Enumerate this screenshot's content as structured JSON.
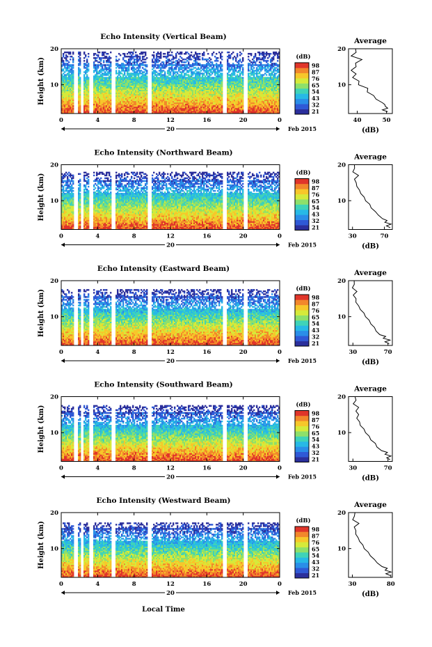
{
  "figure": {
    "xlabel": "Local Time",
    "date_label": "20",
    "month_label": "Feb 2015",
    "colorbar_unit": "(dB)",
    "average_title": "Average",
    "average_xlabel": "(dB)",
    "ylabel": "Height (km)"
  },
  "colors": {
    "colormap": [
      "#2b2f9c",
      "#2f59d6",
      "#2a8ee8",
      "#27b9e6",
      "#3fd3b8",
      "#8ee06a",
      "#d6ea3a",
      "#f7c72a",
      "#f2872b",
      "#e0352a"
    ]
  },
  "chart_data": [
    {
      "type": "heatmap",
      "title": "Echo Intensity (Vertical Beam)",
      "x_range": [
        0,
        24
      ],
      "x_ticks": [
        "0",
        "4",
        "8",
        "12",
        "16",
        "20",
        "0"
      ],
      "y_range": [
        2,
        20
      ],
      "y_ticks": [
        "10",
        "20"
      ],
      "colorbar_ticks": [
        "98",
        "87",
        "76",
        "65",
        "54",
        "43",
        "32",
        "21"
      ],
      "gaps_hours": [
        1.6,
        2.3,
        3.3,
        5.7,
        9.7,
        17.9,
        20.3
      ],
      "average_profile": {
        "x_range": [
          37,
          52
        ],
        "x_ticks": [
          "40",
          "50"
        ],
        "y_ticks": [
          "10",
          "20"
        ],
        "height_km": [
          2.5,
          3,
          3.5,
          4,
          4.5,
          5,
          6,
          7,
          8,
          9,
          10,
          11,
          12,
          13,
          14,
          15,
          16,
          17,
          18,
          19,
          20
        ],
        "value_db": [
          51,
          48,
          51,
          49,
          50,
          48,
          47,
          45,
          44,
          43,
          41,
          40,
          39,
          39,
          38.5,
          39,
          40,
          41,
          38.5,
          39,
          40
        ]
      }
    },
    {
      "type": "heatmap",
      "title": "Echo Intensity (Northward Beam)",
      "x_range": [
        0,
        24
      ],
      "x_ticks": [
        "0",
        "4",
        "8",
        "12",
        "16",
        "20",
        "0"
      ],
      "y_range": [
        2,
        20
      ],
      "y_ticks": [
        "10",
        "20"
      ],
      "colorbar_ticks": [
        "98",
        "87",
        "76",
        "65",
        "54",
        "43",
        "32",
        "21"
      ],
      "gaps_hours": [
        1.6,
        2.3,
        3.3,
        5.7,
        9.7,
        17.9,
        20.3
      ],
      "average_profile": {
        "x_range": [
          25,
          80
        ],
        "x_ticks": [
          "30",
          "70"
        ],
        "y_ticks": [
          "10",
          "20"
        ],
        "height_km": [
          2.5,
          3,
          3.5,
          4,
          4.5,
          5,
          6,
          7,
          8,
          9,
          10,
          11,
          12,
          13,
          14,
          15,
          16,
          17,
          18,
          19,
          20
        ],
        "value_db": [
          78,
          72,
          79,
          70,
          74,
          67,
          63,
          58,
          54,
          51,
          47,
          44,
          41,
          38,
          36,
          34,
          33,
          37,
          31,
          32,
          33
        ]
      }
    },
    {
      "type": "heatmap",
      "title": "Echo Intensity (Eastward Beam)",
      "x_range": [
        0,
        24
      ],
      "x_ticks": [
        "0",
        "4",
        "8",
        "12",
        "16",
        "20",
        "0"
      ],
      "y_range": [
        2,
        20
      ],
      "y_ticks": [
        "10",
        "20"
      ],
      "colorbar_ticks": [
        "98",
        "87",
        "76",
        "65",
        "54",
        "43",
        "32",
        "21"
      ],
      "gaps_hours": [
        1.6,
        2.3,
        3.3,
        5.7,
        9.7,
        17.9,
        20.3
      ],
      "average_profile": {
        "x_range": [
          25,
          75
        ],
        "x_ticks": [
          "30",
          "70"
        ],
        "y_ticks": [
          "10",
          "20"
        ],
        "height_km": [
          2.5,
          3,
          3.5,
          4,
          4.5,
          5,
          6,
          7,
          8,
          9,
          10,
          11,
          12,
          13,
          14,
          15,
          16,
          17,
          18,
          19,
          20
        ],
        "value_db": [
          72,
          66,
          73,
          64,
          68,
          60,
          57,
          54,
          51,
          48,
          45,
          42,
          39,
          36,
          34,
          33,
          31,
          34,
          30,
          31,
          32
        ]
      }
    },
    {
      "type": "heatmap",
      "title": "Echo Intensity (Southward Beam)",
      "x_range": [
        0,
        24
      ],
      "x_ticks": [
        "0",
        "4",
        "8",
        "12",
        "16",
        "20",
        "0"
      ],
      "y_range": [
        2,
        20
      ],
      "y_ticks": [
        "10",
        "20"
      ],
      "colorbar_ticks": [
        "98",
        "87",
        "76",
        "65",
        "54",
        "43",
        "32",
        "21"
      ],
      "gaps_hours": [
        1.6,
        2.3,
        3.3,
        5.7,
        9.7,
        17.9,
        20.3
      ],
      "average_profile": {
        "x_range": [
          25,
          75
        ],
        "x_ticks": [
          "30",
          "70"
        ],
        "y_ticks": [
          "10",
          "20"
        ],
        "height_km": [
          2.5,
          3,
          3.5,
          4,
          4.5,
          5,
          6,
          7,
          8,
          9,
          10,
          11,
          12,
          13,
          14,
          15,
          16,
          17,
          18,
          19,
          20
        ],
        "value_db": [
          73,
          68,
          74,
          66,
          70,
          62,
          58,
          55,
          51,
          48,
          45,
          42,
          39,
          37,
          35,
          36,
          34,
          36,
          31,
          33,
          33
        ]
      }
    },
    {
      "type": "heatmap",
      "title": "Echo Intensity (Westward Beam)",
      "x_range": [
        0,
        24
      ],
      "x_ticks": [
        "0",
        "4",
        "8",
        "12",
        "16",
        "20",
        "0"
      ],
      "y_range": [
        2,
        20
      ],
      "y_ticks": [
        "10",
        "20"
      ],
      "colorbar_ticks": [
        "98",
        "87",
        "76",
        "65",
        "54",
        "43",
        "32",
        "21"
      ],
      "gaps_hours": [
        1.6,
        2.3,
        3.3,
        5.7,
        9.7,
        17.9,
        20.3
      ],
      "average_profile": {
        "x_range": [
          25,
          82
        ],
        "x_ticks": [
          "30",
          "80"
        ],
        "y_ticks": [
          "10",
          "20"
        ],
        "height_km": [
          2.5,
          3,
          3.5,
          4,
          4.5,
          5,
          6,
          7,
          8,
          9,
          10,
          11,
          12,
          13,
          14,
          15,
          16,
          17,
          18,
          19,
          20
        ],
        "value_db": [
          80,
          73,
          81,
          72,
          76,
          68,
          63,
          58,
          54,
          50,
          46,
          43,
          40,
          37,
          35,
          34,
          33,
          38,
          31,
          32,
          34
        ]
      }
    }
  ]
}
